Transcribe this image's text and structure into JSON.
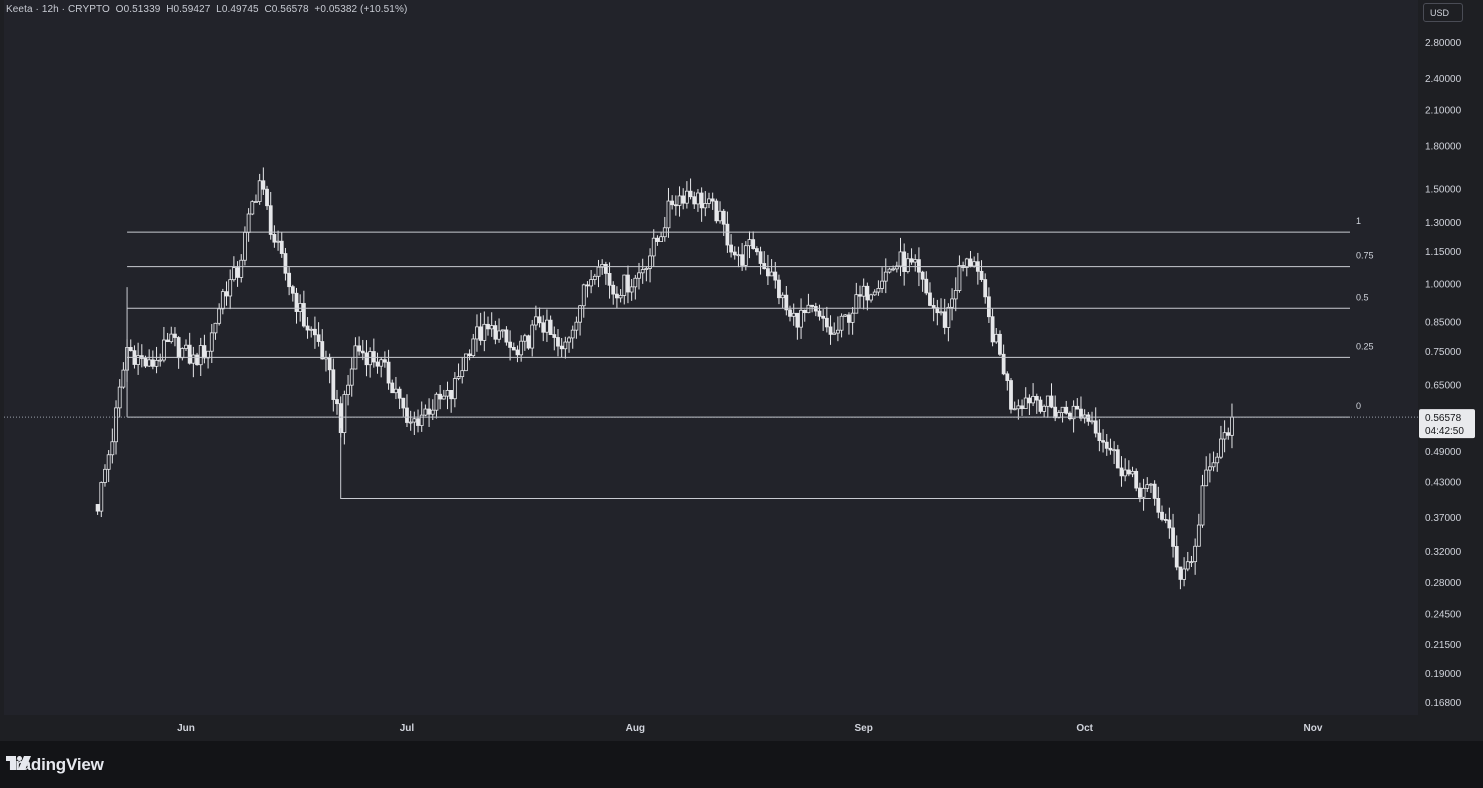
{
  "legend": {
    "symbol": "Keeta · 12h · CRYPTO",
    "open_label": "O",
    "open": "0.51339",
    "high_label": "H",
    "high": "0.59427",
    "low_label": "L",
    "low": "0.49745",
    "close_label": "C",
    "close": "0.56578",
    "change": "+0.05382 (+10.51%)"
  },
  "currency_button": "USD",
  "price_tag": {
    "price": "0.56578",
    "countdown": "04:42:50"
  },
  "brand": "TradingView",
  "colors": {
    "background": "#22232a",
    "candles": "#e6e7ea",
    "lines": "#c9cbd1",
    "accent_text": "#d1d4dc"
  },
  "chart_data": {
    "type": "candlestick",
    "scale": "log",
    "interval": "12h",
    "y_ticks": [
      "2.80000",
      "2.40000",
      "2.10000",
      "1.80000",
      "1.50000",
      "1.30000",
      "1.15000",
      "1.00000",
      "0.85000",
      "0.75000",
      "0.65000",
      "0.49000",
      "0.43000",
      "0.37000",
      "0.32000",
      "0.28000",
      "0.24500",
      "0.21500",
      "0.19000",
      "0.16800"
    ],
    "x_ticks": [
      "Jun",
      "Jul",
      "Aug",
      "Sep",
      "Oct",
      "Nov"
    ],
    "fib_levels": [
      {
        "label": "1",
        "price": 1.245
      },
      {
        "label": "0.75",
        "price": 1.075
      },
      {
        "label": "0.5",
        "price": 0.9
      },
      {
        "label": "0.25",
        "price": 0.73
      },
      {
        "label": "0",
        "price": 0.5658
      }
    ],
    "support_line": {
      "price": 0.4,
      "from": "Jun 22",
      "to": "Oct 10"
    },
    "last_price": 0.56578,
    "path": [
      {
        "date": "May 20",
        "price": 0.39
      },
      {
        "date": "May 22",
        "price": 0.52
      },
      {
        "date": "May 24",
        "price": 0.76
      },
      {
        "date": "May 27",
        "price": 0.7
      },
      {
        "date": "May 30",
        "price": 0.78
      },
      {
        "date": "Jun 2",
        "price": 0.72
      },
      {
        "date": "Jun 4",
        "price": 0.76
      },
      {
        "date": "Jun 6",
        "price": 0.96
      },
      {
        "date": "Jun 8",
        "price": 1.05
      },
      {
        "date": "Jun 10",
        "price": 1.4
      },
      {
        "date": "Jun 11",
        "price": 1.55
      },
      {
        "date": "Jun 13",
        "price": 1.2
      },
      {
        "date": "Jun 15",
        "price": 1.0
      },
      {
        "date": "Jun 17",
        "price": 0.85
      },
      {
        "date": "Jun 19",
        "price": 0.78
      },
      {
        "date": "Jun 21",
        "price": 0.63
      },
      {
        "date": "Jun 22",
        "price": 0.55
      },
      {
        "date": "Jun 24",
        "price": 0.76
      },
      {
        "date": "Jun 27",
        "price": 0.72
      },
      {
        "date": "Jun 30",
        "price": 0.62
      },
      {
        "date": "Jul 1",
        "price": 0.54
      },
      {
        "date": "Jul 4",
        "price": 0.59
      },
      {
        "date": "Jul 7",
        "price": 0.62
      },
      {
        "date": "Jul 10",
        "price": 0.8
      },
      {
        "date": "Jul 13",
        "price": 0.82
      },
      {
        "date": "Jul 16",
        "price": 0.73
      },
      {
        "date": "Jul 19",
        "price": 0.86
      },
      {
        "date": "Jul 22",
        "price": 0.74
      },
      {
        "date": "Jul 25",
        "price": 0.96
      },
      {
        "date": "Jul 27",
        "price": 1.12
      },
      {
        "date": "Jul 29",
        "price": 0.97
      },
      {
        "date": "Aug 1",
        "price": 1.02
      },
      {
        "date": "Aug 4",
        "price": 1.2
      },
      {
        "date": "Aug 6",
        "price": 1.42
      },
      {
        "date": "Aug 8",
        "price": 1.48
      },
      {
        "date": "Aug 10",
        "price": 1.42
      },
      {
        "date": "Aug 12",
        "price": 1.35
      },
      {
        "date": "Aug 15",
        "price": 1.1
      },
      {
        "date": "Aug 17",
        "price": 1.18
      },
      {
        "date": "Aug 20",
        "price": 1.0
      },
      {
        "date": "Aug 22",
        "price": 0.86
      },
      {
        "date": "Aug 25",
        "price": 0.88
      },
      {
        "date": "Aug 28",
        "price": 0.8
      },
      {
        "date": "Aug 31",
        "price": 0.92
      },
      {
        "date": "Sep 3",
        "price": 1.02
      },
      {
        "date": "Sep 6",
        "price": 1.1
      },
      {
        "date": "Sep 8",
        "price": 1.06
      },
      {
        "date": "Sep 10",
        "price": 0.92
      },
      {
        "date": "Sep 12",
        "price": 0.85
      },
      {
        "date": "Sep 14",
        "price": 1.05
      },
      {
        "date": "Sep 16",
        "price": 1.12
      },
      {
        "date": "Sep 18",
        "price": 0.85
      },
      {
        "date": "Sep 20",
        "price": 0.7
      },
      {
        "date": "Sep 21",
        "price": 0.6
      },
      {
        "date": "Sep 24",
        "price": 0.62
      },
      {
        "date": "Sep 27",
        "price": 0.58
      },
      {
        "date": "Sep 30",
        "price": 0.58
      },
      {
        "date": "Oct 2",
        "price": 0.56
      },
      {
        "date": "Oct 5",
        "price": 0.48
      },
      {
        "date": "Oct 8",
        "price": 0.42
      },
      {
        "date": "Oct 10",
        "price": 0.41
      },
      {
        "date": "Oct 12",
        "price": 0.36
      },
      {
        "date": "Oct 14",
        "price": 0.29
      },
      {
        "date": "Oct 16",
        "price": 0.32
      },
      {
        "date": "Oct 17",
        "price": 0.42
      },
      {
        "date": "Oct 19",
        "price": 0.48
      },
      {
        "date": "Oct 21",
        "price": 0.5658
      }
    ]
  }
}
